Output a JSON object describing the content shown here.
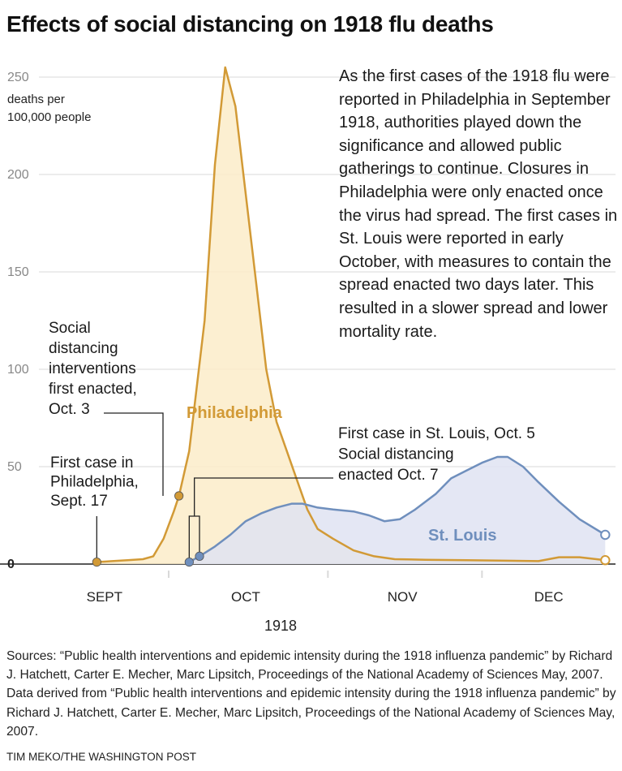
{
  "chart_data": {
    "type": "area",
    "title": "Effects of social distancing on 1918 flu deaths",
    "ylabel": "deaths per\n100,000 people",
    "ylim": [
      0,
      250
    ],
    "yticks": [
      0,
      50,
      100,
      150,
      200,
      250
    ],
    "xlabel": "1918",
    "xlim": [
      "1918-09-07",
      "1918-12-27"
    ],
    "months": [
      {
        "label": "SEPT",
        "start": "1918-09-01",
        "end": "1918-09-30"
      },
      {
        "label": "OCT",
        "start": "1918-10-01",
        "end": "1918-10-31"
      },
      {
        "label": "NOV",
        "start": "1918-11-01",
        "end": "1918-11-30"
      },
      {
        "label": "DEC",
        "start": "1918-12-01",
        "end": "1918-12-31"
      }
    ],
    "grid": true,
    "series": [
      {
        "name": "Philadelphia",
        "color": "#d29a36",
        "fill": "#fbecc9",
        "points": [
          [
            "1918-09-17",
            1
          ],
          [
            "1918-09-20",
            1.5
          ],
          [
            "1918-09-23",
            2
          ],
          [
            "1918-09-26",
            2.5
          ],
          [
            "1918-09-28",
            4
          ],
          [
            "1918-09-30",
            13
          ],
          [
            "1918-10-02",
            27
          ],
          [
            "1918-10-03",
            35
          ],
          [
            "1918-10-05",
            58
          ],
          [
            "1918-10-08",
            125
          ],
          [
            "1918-10-10",
            205
          ],
          [
            "1918-10-12",
            255
          ],
          [
            "1918-10-14",
            235
          ],
          [
            "1918-10-16",
            190
          ],
          [
            "1918-10-18",
            145
          ],
          [
            "1918-10-20",
            100
          ],
          [
            "1918-10-22",
            73
          ],
          [
            "1918-10-24",
            58
          ],
          [
            "1918-10-26",
            43
          ],
          [
            "1918-10-28",
            28
          ],
          [
            "1918-10-30",
            18
          ],
          [
            "1918-11-02",
            13
          ],
          [
            "1918-11-06",
            7
          ],
          [
            "1918-11-10",
            4
          ],
          [
            "1918-11-14",
            2.5
          ],
          [
            "1918-11-20",
            2.2
          ],
          [
            "1918-11-28",
            2
          ],
          [
            "1918-12-06",
            1.7
          ],
          [
            "1918-12-12",
            1.5
          ],
          [
            "1918-12-16",
            3.5
          ],
          [
            "1918-12-20",
            3.5
          ],
          [
            "1918-12-25",
            2
          ]
        ]
      },
      {
        "name": "St. Louis",
        "color": "#6f8fbd",
        "fill": "#dfe3f2",
        "points": [
          [
            "1918-10-05",
            1
          ],
          [
            "1918-10-07",
            4
          ],
          [
            "1918-10-10",
            9
          ],
          [
            "1918-10-13",
            15
          ],
          [
            "1918-10-16",
            22
          ],
          [
            "1918-10-19",
            26
          ],
          [
            "1918-10-22",
            29
          ],
          [
            "1918-10-25",
            31
          ],
          [
            "1918-10-27",
            31
          ],
          [
            "1918-10-30",
            29
          ],
          [
            "1918-11-02",
            28
          ],
          [
            "1918-11-06",
            27
          ],
          [
            "1918-11-09",
            25
          ],
          [
            "1918-11-12",
            22
          ],
          [
            "1918-11-15",
            23
          ],
          [
            "1918-11-18",
            28
          ],
          [
            "1918-11-22",
            36
          ],
          [
            "1918-11-25",
            44
          ],
          [
            "1918-11-28",
            48
          ],
          [
            "1918-12-01",
            52
          ],
          [
            "1918-12-04",
            55
          ],
          [
            "1918-12-06",
            55
          ],
          [
            "1918-12-09",
            50
          ],
          [
            "1918-12-12",
            42
          ],
          [
            "1918-12-16",
            32
          ],
          [
            "1918-12-20",
            23
          ],
          [
            "1918-12-25",
            15
          ]
        ]
      }
    ],
    "markers": [
      {
        "series": "Philadelphia",
        "date": "1918-09-17",
        "value": 1,
        "kind": "filled"
      },
      {
        "series": "Philadelphia",
        "date": "1918-10-03",
        "value": 35,
        "kind": "filled"
      },
      {
        "series": "Philadelphia",
        "date": "1918-12-25",
        "value": 2,
        "kind": "open"
      },
      {
        "series": "St. Louis",
        "date": "1918-10-05",
        "value": 1,
        "kind": "filled"
      },
      {
        "series": "St. Louis",
        "date": "1918-10-07",
        "value": 4,
        "kind": "filled"
      },
      {
        "series": "St. Louis",
        "date": "1918-12-25",
        "value": 15,
        "kind": "open"
      }
    ],
    "annotations": [
      {
        "id": "phil-first-case",
        "lines": [
          "First case in",
          "Philadelphia,",
          "Sept. 17"
        ]
      },
      {
        "id": "phil-distancing",
        "lines": [
          "Social",
          "distancing",
          "interventions",
          "first enacted,",
          "Oct. 3"
        ]
      },
      {
        "id": "stl-first-case",
        "lines": [
          "First case in St. Louis, Oct. 5",
          "Social distancing",
          "enacted Oct. 7"
        ]
      }
    ]
  },
  "description": "As the first cases of the 1918 flu were reported in Philadelphia in September 1918, authorities played down the significance and allowed public gatherings to continue. Closures in Philadelphia were only enacted once the virus had spread. The first cases in St. Louis were reported in early October, with measures to contain the spread enacted two days later. This resulted in a slower spread and lower mortality rate.",
  "sources": "Sources: “Public health interventions and epidemic intensity during the 1918 influenza pandemic” by Richard J. Hatchett, Carter E. Mecher, Marc Lipsitch, Proceedings of the National Academy of Sciences May, 2007. Data derived from “Public health interventions and epidemic intensity during the 1918 influenza pandemic” by Richard J. Hatchett, Carter E. Mecher, Marc Lipsitch, Proceedings of the National Academy of Sciences May, 2007.",
  "credit": "TIM MEKO/THE WASHINGTON POST",
  "colors": {
    "text": "#1a1a1a",
    "gridline": "#d9d9d9",
    "axis": "#222222",
    "tick_label": "#888888"
  }
}
